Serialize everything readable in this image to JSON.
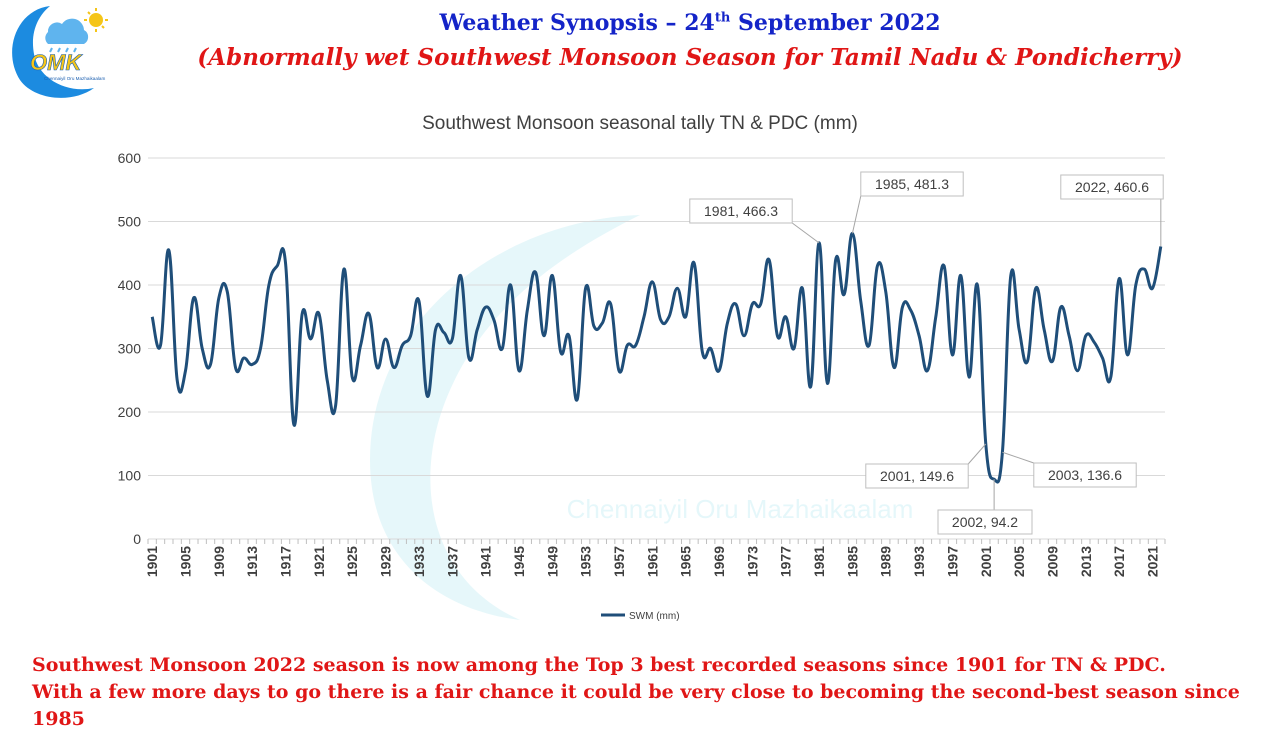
{
  "header": {
    "title_main": "Weather Synopsis – 24",
    "title_sup": "th",
    "title_rest": " September 2022",
    "subtitle": "(Abnormally wet Southwest Monsoon Season for Tamil Nadu & Pondicherry)"
  },
  "logo": {
    "text": "OMK",
    "caption": "Chennaiyil Oru Mazhaikaalam",
    "watermark": "Chennaiyil Oru Mazhaikaalam"
  },
  "footer": {
    "line1": "Southwest Monsoon 2022 season is now among the Top 3 best recorded seasons since 1901 for TN & PDC.",
    "line2": "With a few more days to go there is a fair chance it could be very close to becoming the second-best season since 1985"
  },
  "colors": {
    "title": "#1424c8",
    "alert": "#e01616",
    "series": "#1f4e79"
  },
  "chart_data": {
    "type": "line",
    "title": "Southwest Monsoon seasonal tally TN & PDC (mm)",
    "xlabel": "",
    "ylabel": "",
    "ylim": [
      0,
      600
    ],
    "yticks": [
      0,
      100,
      200,
      300,
      400,
      500,
      600
    ],
    "xticks": [
      1901,
      1905,
      1909,
      1913,
      1917,
      1921,
      1925,
      1929,
      1933,
      1937,
      1941,
      1945,
      1949,
      1953,
      1957,
      1961,
      1965,
      1969,
      1973,
      1977,
      1981,
      1985,
      1989,
      1993,
      1997,
      2001,
      2005,
      2009,
      2013,
      2017,
      2021
    ],
    "grid": true,
    "legend": "bottom",
    "series": [
      {
        "name": "SWM (mm)",
        "color": "#1f4e79",
        "x_start": 1901,
        "values": [
          350,
          305,
          455,
          250,
          265,
          380,
          300,
          275,
          380,
          390,
          270,
          285,
          275,
          300,
          400,
          430,
          435,
          180,
          355,
          315,
          355,
          250,
          210,
          425,
          255,
          305,
          355,
          270,
          315,
          270,
          305,
          320,
          375,
          225,
          330,
          325,
          315,
          415,
          285,
          330,
          365,
          345,
          300,
          400,
          265,
          360,
          420,
          320,
          415,
          295,
          320,
          220,
          395,
          335,
          340,
          370,
          265,
          305,
          305,
          350,
          405,
          345,
          350,
          395,
          350,
          435,
          295,
          300,
          265,
          340,
          370,
          320,
          370,
          370,
          440,
          320,
          350,
          300,
          395,
          240,
          466.3,
          245,
          440,
          385,
          481.3,
          375,
          305,
          430,
          390,
          270,
          365,
          360,
          320,
          265,
          350,
          430,
          290,
          415,
          255,
          400,
          149.6,
          94.2,
          136.6,
          415,
          330,
          280,
          395,
          330,
          280,
          365,
          320,
          265,
          320,
          310,
          285,
          255,
          410,
          290,
          400,
          425,
          395,
          460.6
        ]
      }
    ],
    "annotations": [
      {
        "year": 1981,
        "value": 466.3,
        "label": "1981, 466.3"
      },
      {
        "year": 1985,
        "value": 481.3,
        "label": "1985, 481.3"
      },
      {
        "year": 2022,
        "value": 460.6,
        "label": "2022, 460.6"
      },
      {
        "year": 2001,
        "value": 149.6,
        "label": "2001, 149.6"
      },
      {
        "year": 2002,
        "value": 94.2,
        "label": "2002, 94.2"
      },
      {
        "year": 2003,
        "value": 136.6,
        "label": "2003, 136.6"
      }
    ]
  }
}
